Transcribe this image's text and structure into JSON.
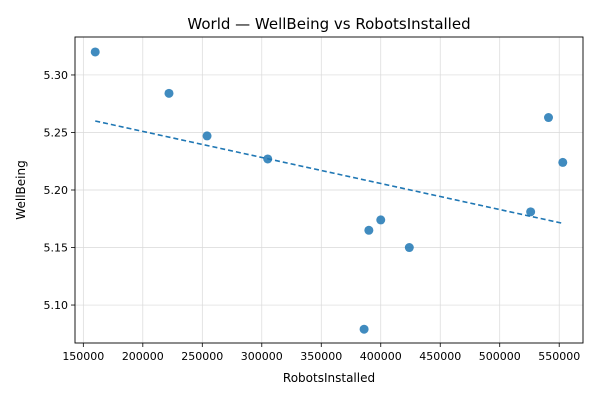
{
  "chart_data": {
    "type": "scatter",
    "title": "World — WellBeing vs RobotsInstalled",
    "xlabel": "RobotsInstalled",
    "ylabel": "WellBeing",
    "xlim": [
      143000,
      570000
    ],
    "ylim": [
      5.067,
      5.333
    ],
    "xticks": [
      150000,
      200000,
      250000,
      300000,
      350000,
      400000,
      450000,
      500000,
      550000
    ],
    "xtick_labels": [
      "150000",
      "200000",
      "250000",
      "300000",
      "350000",
      "400000",
      "450000",
      "500000",
      "550000"
    ],
    "yticks": [
      5.1,
      5.15,
      5.2,
      5.25,
      5.3
    ],
    "ytick_labels": [
      "5.10",
      "5.15",
      "5.20",
      "5.25",
      "5.30"
    ],
    "grid": true,
    "points": [
      {
        "x": 160000,
        "y": 5.32
      },
      {
        "x": 222000,
        "y": 5.284
      },
      {
        "x": 254000,
        "y": 5.247
      },
      {
        "x": 305000,
        "y": 5.227
      },
      {
        "x": 386000,
        "y": 5.079
      },
      {
        "x": 390000,
        "y": 5.165
      },
      {
        "x": 400000,
        "y": 5.174
      },
      {
        "x": 424000,
        "y": 5.15
      },
      {
        "x": 526000,
        "y": 5.181
      },
      {
        "x": 541000,
        "y": 5.263
      },
      {
        "x": 553000,
        "y": 5.224
      }
    ],
    "trendline": {
      "x": [
        160000,
        553000
      ],
      "y": [
        5.26,
        5.171
      ],
      "style": "dashed"
    },
    "colors": {
      "point": "#1f77b4",
      "trend": "#1f77b4"
    }
  }
}
